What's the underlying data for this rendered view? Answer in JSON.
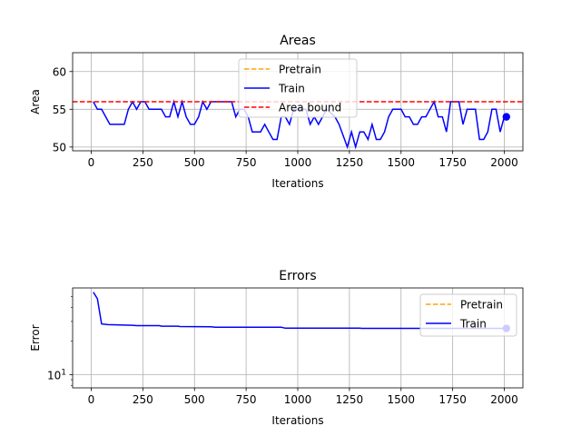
{
  "chart_data": [
    {
      "type": "line",
      "title": "Areas",
      "xlabel": "Iterations",
      "ylabel": "Area",
      "xlim": [
        -90,
        2090
      ],
      "ylim": [
        49.5,
        62.5
      ],
      "xticks": [
        0,
        250,
        500,
        750,
        1000,
        1250,
        1500,
        1750,
        2000
      ],
      "yticks": [
        50,
        55,
        60
      ],
      "grid": true,
      "legend": {
        "placement": "upper center",
        "entries": [
          {
            "label": "Pretrain",
            "color": "#ffa500",
            "style": "dashed"
          },
          {
            "label": "Train",
            "color": "#0000ff",
            "style": "solid"
          },
          {
            "label": "Area bound",
            "color": "#ff0000",
            "style": "dashed"
          }
        ]
      },
      "series": [
        {
          "name": "Pretrain",
          "color": "#ffa500",
          "style": "dashed",
          "x": [],
          "y": []
        },
        {
          "name": "Train",
          "color": "#0000ff",
          "style": "solid",
          "x": [
            10,
            30,
            50,
            90,
            110,
            130,
            160,
            180,
            200,
            220,
            240,
            260,
            280,
            300,
            340,
            360,
            380,
            400,
            420,
            440,
            460,
            480,
            500,
            520,
            540,
            560,
            580,
            620,
            660,
            680,
            700,
            720,
            740,
            760,
            780,
            800,
            820,
            840,
            860,
            880,
            900,
            920,
            940,
            960,
            980,
            1000,
            1040,
            1060,
            1080,
            1100,
            1120,
            1140,
            1180,
            1200,
            1240,
            1260,
            1280,
            1300,
            1320,
            1340,
            1360,
            1380,
            1400,
            1420,
            1440,
            1460,
            1480,
            1500,
            1520,
            1540,
            1560,
            1580,
            1600,
            1620,
            1640,
            1660,
            1680,
            1700,
            1720,
            1740,
            1760,
            1780,
            1800,
            1820,
            1840,
            1860,
            1880,
            1900,
            1920,
            1940,
            1960,
            1980,
            2000,
            2010
          ],
          "y": [
            56,
            55,
            55,
            53,
            53,
            53,
            53,
            55,
            56,
            55,
            56,
            56,
            55,
            55,
            55,
            54,
            54,
            56,
            54,
            56,
            54,
            53,
            53,
            54,
            56,
            55,
            56,
            56,
            56,
            56,
            54,
            55,
            55,
            54,
            52,
            52,
            52,
            53,
            52,
            51,
            51,
            54,
            54,
            53,
            55,
            55,
            55,
            53,
            54,
            53,
            54,
            55,
            54,
            53,
            50,
            52,
            50,
            52,
            52,
            51,
            53,
            51,
            51,
            52,
            54,
            55,
            55,
            55,
            54,
            54,
            53,
            53,
            54,
            54,
            55,
            56,
            54,
            54,
            52,
            56,
            56,
            56,
            53,
            55,
            55,
            55,
            51,
            51,
            52,
            55,
            55,
            52,
            54,
            54
          ]
        },
        {
          "name": "Area bound",
          "color": "#ff0000",
          "style": "dashed",
          "x": [
            -90,
            2090
          ],
          "y": [
            56,
            56
          ]
        }
      ],
      "end_marker": {
        "x": 2010,
        "y": 54,
        "color": "#0000ff"
      }
    },
    {
      "type": "line",
      "title": "Errors",
      "xlabel": "Iterations",
      "ylabel": "Error",
      "yscale": "log",
      "xlim": [
        -90,
        2090
      ],
      "ylim": [
        7.6,
        60
      ],
      "xticks": [
        0,
        250,
        500,
        750,
        1000,
        1250,
        1500,
        1750,
        2000
      ],
      "yticks": [
        10
      ],
      "ytick_labels": [
        "10"
      ],
      "grid": true,
      "legend": {
        "placement": "upper right",
        "entries": [
          {
            "label": "Pretrain",
            "color": "#ffa500",
            "style": "dashed"
          },
          {
            "label": "Train",
            "color": "#0000ff",
            "style": "solid"
          }
        ]
      },
      "series": [
        {
          "name": "Pretrain",
          "color": "#ffa500",
          "style": "dashed",
          "x": [],
          "y": []
        },
        {
          "name": "Train",
          "color": "#0000ff",
          "style": "solid",
          "x": [
            10,
            30,
            50,
            80,
            120,
            200,
            220,
            330,
            340,
            420,
            430,
            580,
            600,
            920,
            940,
            1300,
            1310,
            2010
          ],
          "y": [
            55,
            48,
            28.5,
            28.1,
            28.0,
            27.7,
            27.5,
            27.5,
            27.2,
            27.2,
            27.0,
            26.9,
            26.6,
            26.6,
            26.1,
            26.1,
            26.0,
            26.0
          ]
        }
      ],
      "end_marker": {
        "x": 2010,
        "y": 26.0,
        "color": "#0000ff"
      }
    }
  ]
}
